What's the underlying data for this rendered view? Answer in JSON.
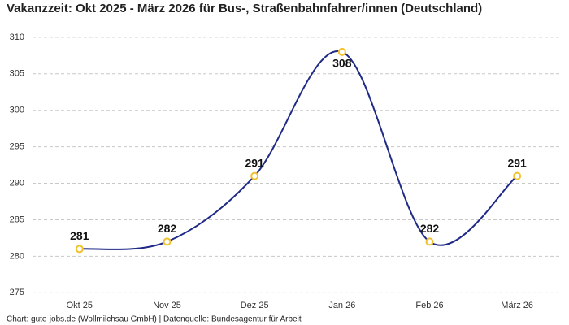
{
  "chart_data": {
    "type": "line",
    "title": "Vakanzzeit: Okt 2025 - März 2026 für Bus-, Straßenbahnfahrer/innen (Deutschland)",
    "footer": "Chart: gute-jobs.de (Wollmilchsau GmbH) | Datenquelle: Bundesagentur für Arbeit",
    "categories": [
      "Okt 25",
      "Nov 25",
      "Dez 25",
      "Jan 26",
      "Feb 26",
      "März 26"
    ],
    "series": [
      {
        "color": "#1f2a86",
        "values": [
          281,
          282,
          291,
          308,
          282,
          291
        ]
      }
    ],
    "marker_color": "#f2c12e",
    "ylim": [
      273.7,
      311.1
    ],
    "yticks": [
      275,
      280,
      285,
      290,
      295,
      300,
      305,
      310
    ],
    "grid": true
  }
}
